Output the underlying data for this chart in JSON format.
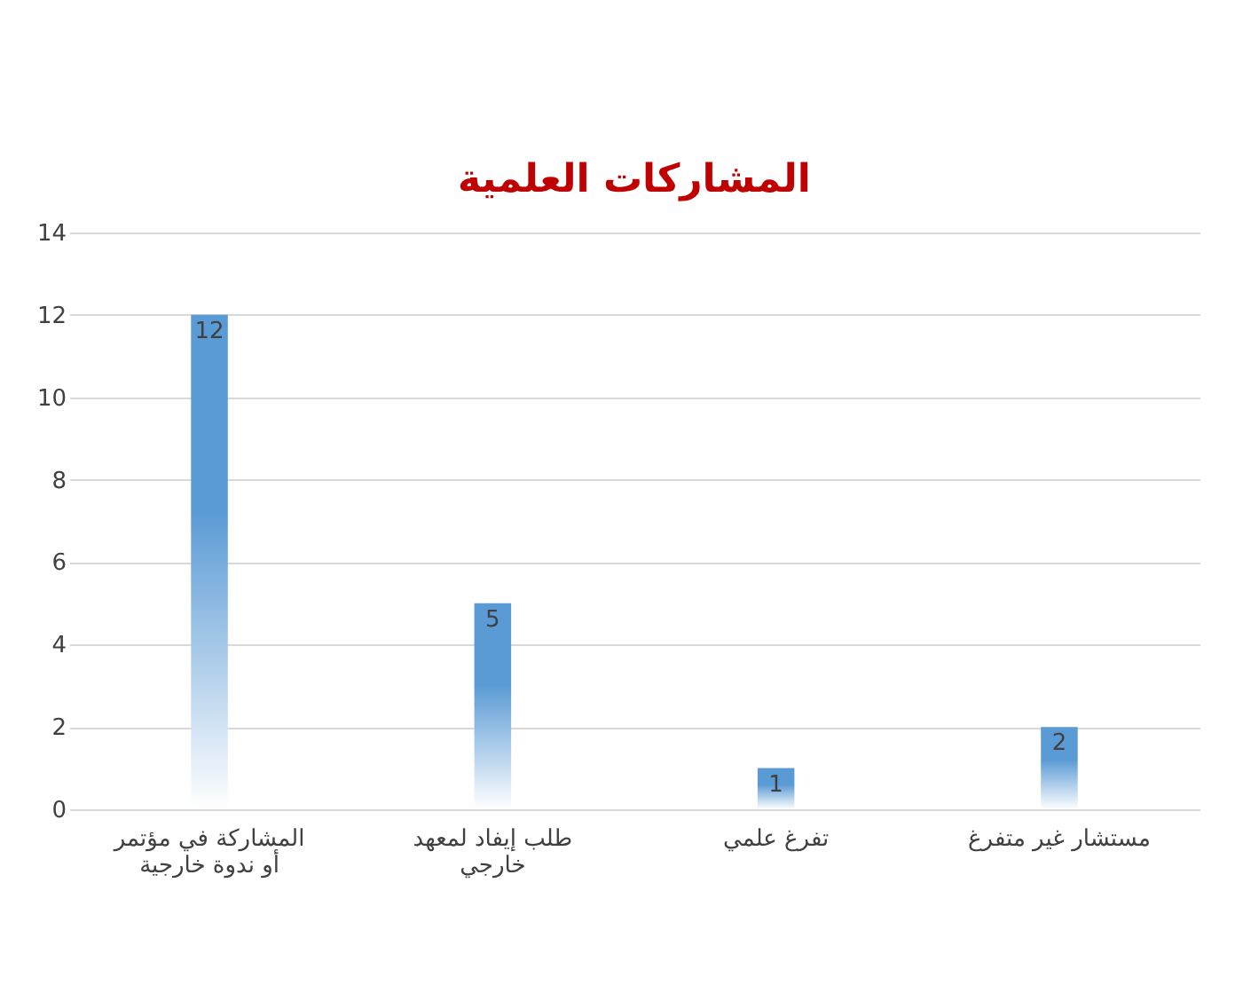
{
  "chart_data": {
    "type": "bar",
    "title": "المشاركات العلمية",
    "categories": [
      "المشاركة في مؤتمر أو ندوة خارجية",
      "طلب إيفاد لمعهد خارجي",
      "تفرغ علمي",
      "مستشار غير متفرغ"
    ],
    "values": [
      12,
      5,
      1,
      2
    ],
    "color": "#5b9bd5",
    "ylim": [
      0,
      14
    ],
    "yticks": [
      0,
      2,
      4,
      6,
      8,
      10,
      12,
      14
    ],
    "grid": "y",
    "data_labels": true
  }
}
